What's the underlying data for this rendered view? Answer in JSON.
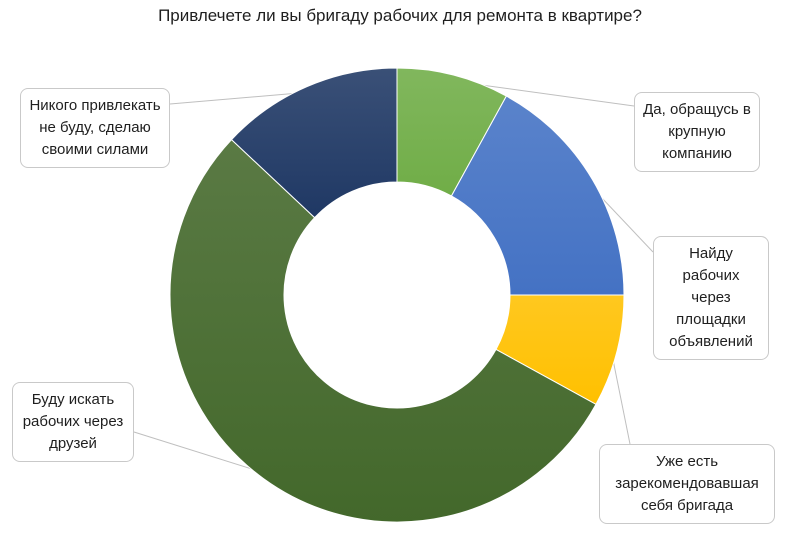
{
  "chart_data": {
    "type": "donut",
    "title": "Привлечете ли вы бригаду рабочих для ремонта в квартире?",
    "slices": [
      {
        "lines": [
          "Да, обращусь в",
          "крупную",
          "компанию"
        ],
        "value": 8,
        "color": "#70ad47"
      },
      {
        "lines": [
          "Найду рабочих",
          "через площадки",
          "объявлений"
        ],
        "value": 17,
        "color": "#4472c4"
      },
      {
        "lines": [
          "Уже есть",
          "зарекомендовавшая",
          "себя бригада"
        ],
        "value": 8,
        "color": "#ffc000"
      },
      {
        "lines": [
          "Буду искать",
          "рабочих через",
          "друзей"
        ],
        "value": 54,
        "color": "#43682b"
      },
      {
        "lines": [
          "Никого привлекать",
          "не буду, сделаю",
          "своими силами"
        ],
        "value": 13,
        "color": "#1f3864"
      }
    ]
  }
}
